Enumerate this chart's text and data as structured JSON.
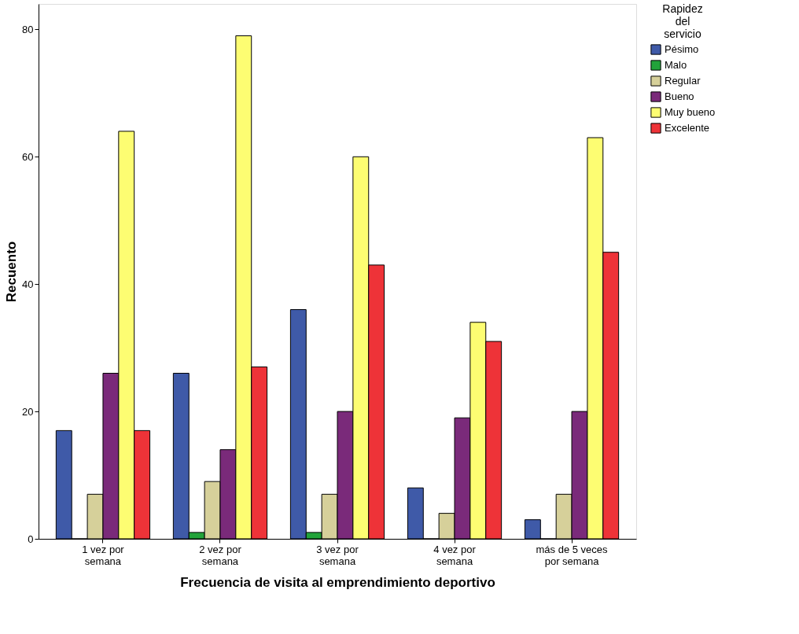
{
  "chart_data": {
    "type": "bar",
    "xlabel": "Frecuencia de visita al emprendimiento deportivo",
    "ylabel": "Recuento",
    "legend_title": "Rapidez del servicio",
    "categories": [
      "1 vez por semana",
      "2 vez por semana",
      "3 vez por semana",
      "4 vez por semana",
      "más de 5 veces por semana"
    ],
    "series": [
      {
        "name": "Pésimo",
        "color": "#3f5aa8",
        "values": [
          17,
          26,
          36,
          8,
          3
        ]
      },
      {
        "name": "Malo",
        "color": "#22a33a",
        "values": [
          0,
          1,
          1,
          0,
          0
        ]
      },
      {
        "name": "Regular",
        "color": "#d6d09a",
        "values": [
          7,
          9,
          7,
          4,
          7
        ]
      },
      {
        "name": "Bueno",
        "color": "#7a2a7a",
        "values": [
          26,
          14,
          20,
          19,
          20
        ]
      },
      {
        "name": "Muy bueno",
        "color": "#fdfd72",
        "values": [
          64,
          79,
          60,
          34,
          63
        ]
      },
      {
        "name": "Excelente",
        "color": "#ee3338",
        "values": [
          17,
          27,
          43,
          31,
          45
        ]
      }
    ],
    "ylim": [
      0,
      84
    ],
    "yticks": [
      0,
      20,
      40,
      60,
      80
    ],
    "grid": false,
    "legend": "top right"
  }
}
